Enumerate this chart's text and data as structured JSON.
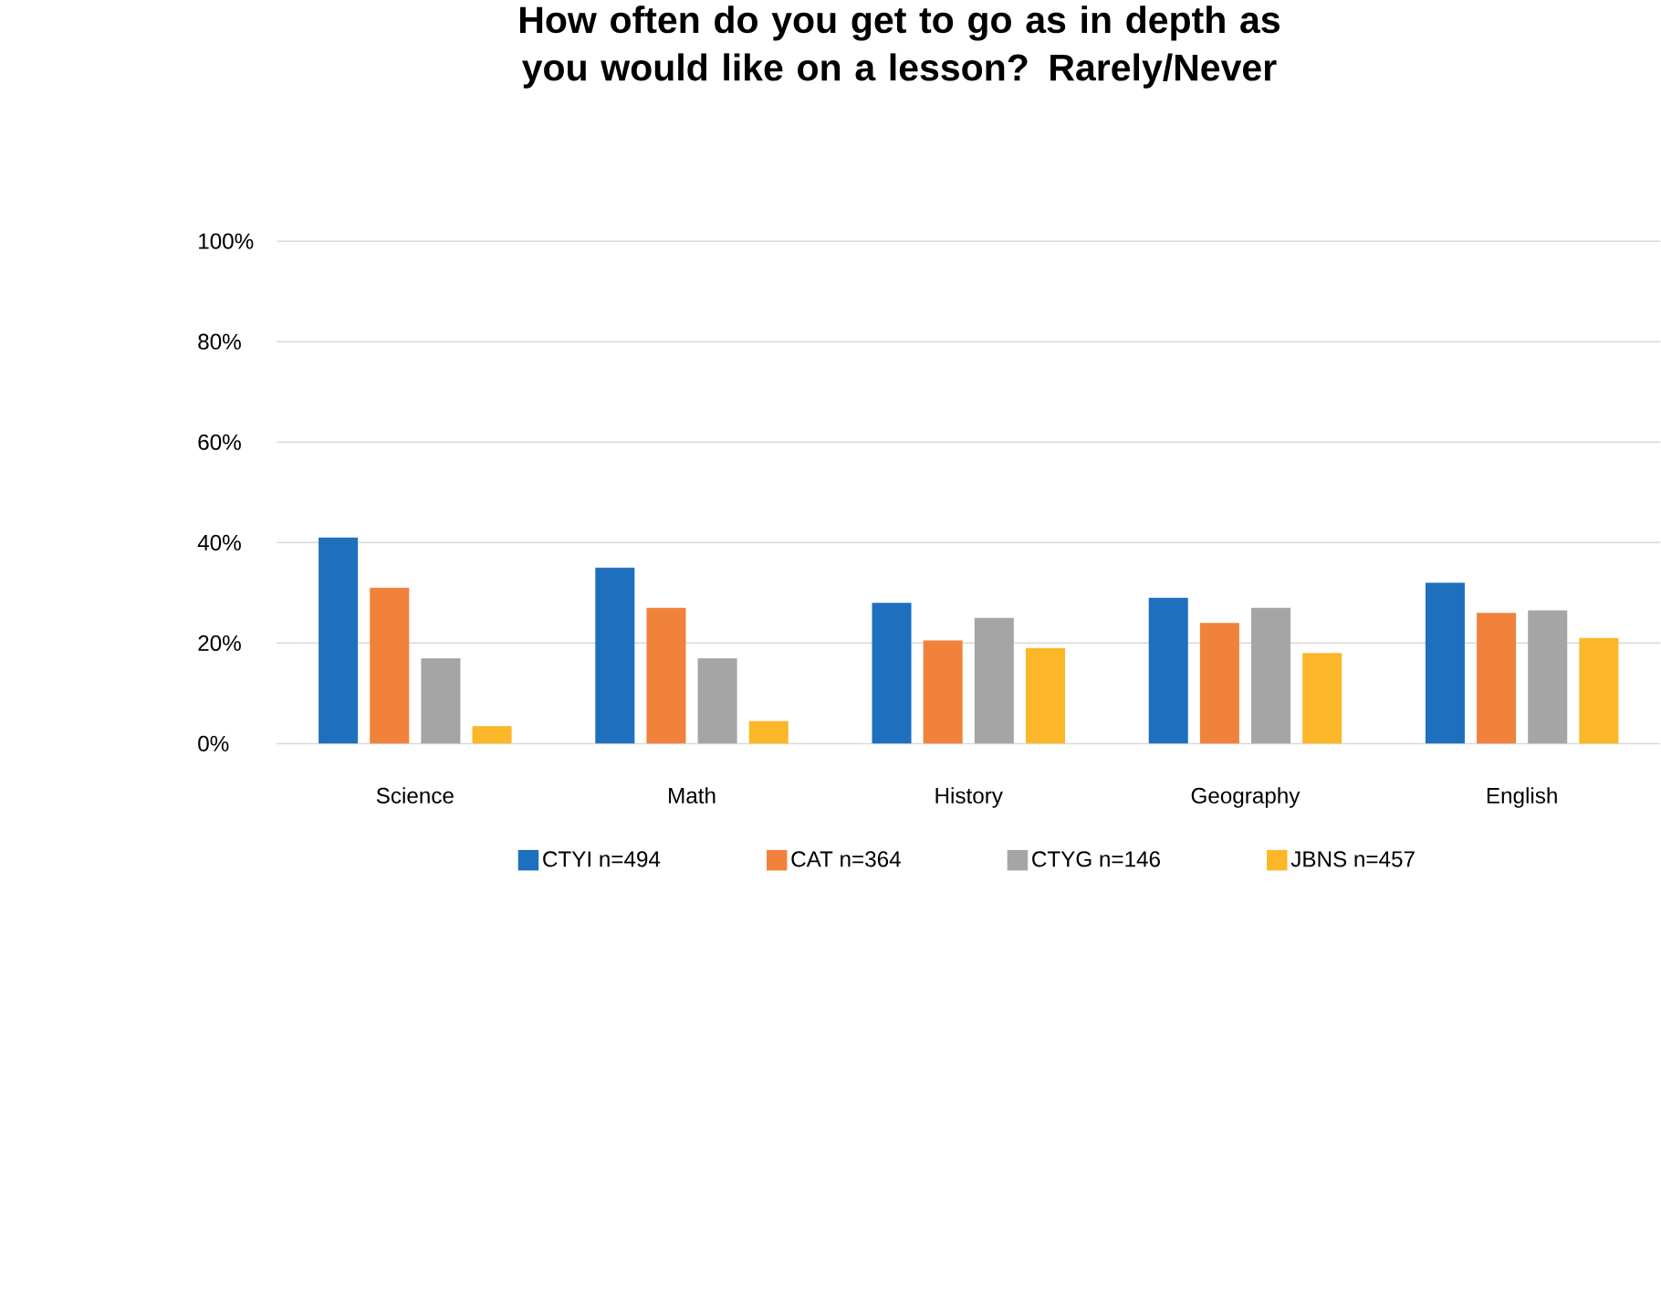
{
  "chart_data": {
    "type": "bar",
    "title": "How often do you get to go as in depth as you would like on a lesson? Rarely/Never",
    "categories": [
      "Science",
      "Math",
      "History",
      "Geography",
      "English"
    ],
    "series": [
      {
        "name": "CTYI n=494",
        "color": "#1f6fbf",
        "values": [
          41,
          35,
          28,
          29,
          32
        ]
      },
      {
        "name": "CAT n=364",
        "color": "#f0823c",
        "values": [
          31,
          27,
          20.5,
          24,
          26
        ]
      },
      {
        "name": "CTYG n=146",
        "color": "#a5a5a5",
        "values": [
          17,
          17,
          25,
          27,
          26.5
        ]
      },
      {
        "name": "JBNS n=457",
        "color": "#fbb728",
        "values": [
          3.5,
          4.5,
          19,
          18,
          21
        ]
      }
    ],
    "ylim": [
      0,
      100
    ],
    "yticks": [
      {
        "value": 0,
        "label": "0%"
      },
      {
        "value": 20,
        "label": "20%"
      },
      {
        "value": 40,
        "label": "40%"
      },
      {
        "value": 60,
        "label": "60%"
      },
      {
        "value": 80,
        "label": "80%"
      },
      {
        "value": 100,
        "label": "100%"
      }
    ],
    "grid": "y",
    "legend": "bottom"
  }
}
